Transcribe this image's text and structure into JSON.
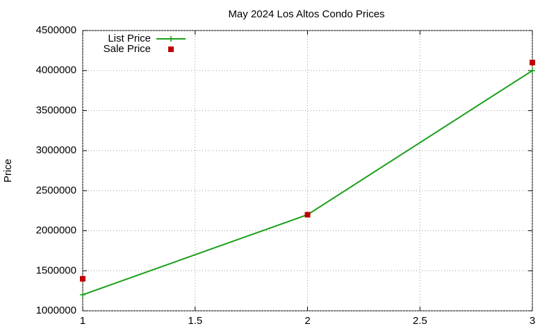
{
  "chart_data": {
    "type": "line",
    "title": "May 2024 Los Altos Condo Prices",
    "ylabel": "Price",
    "x": [
      1,
      2,
      3
    ],
    "series": [
      {
        "name": "List Price",
        "color": "#1a9e1a",
        "style": "linespoints",
        "values": [
          1200000,
          2200000,
          4000000
        ]
      },
      {
        "name": "Sale Price",
        "color": "#c00000",
        "style": "points",
        "values": [
          1400000,
          2200000,
          4100000
        ]
      }
    ],
    "xlim": [
      1,
      3
    ],
    "xticks": [
      1,
      1.5,
      2,
      2.5,
      3
    ],
    "ylim": [
      1000000,
      4500000
    ],
    "yticks": [
      1000000,
      1500000,
      2000000,
      2500000,
      3000000,
      3500000,
      4000000,
      4500000
    ],
    "grid": true,
    "legend": "top-left"
  }
}
